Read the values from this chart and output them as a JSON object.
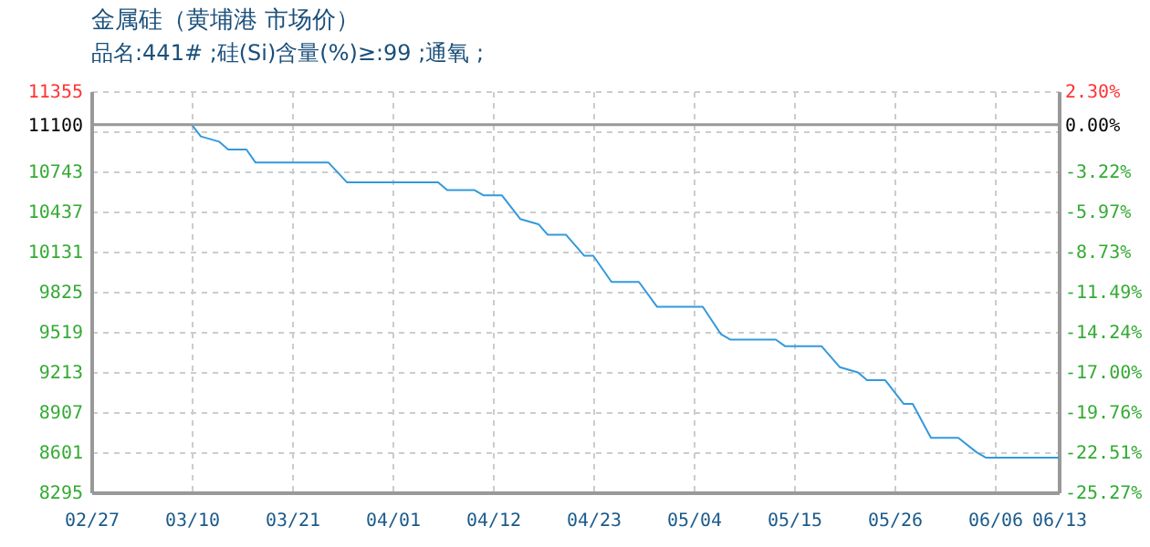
{
  "chart_data": {
    "type": "line",
    "title": "金属硅（黄埔港 市场价）",
    "subtitle": "品名:441# ;硅(Si)含量(%)≥:99 ;通氧 ;",
    "x": [
      "--02-27",
      "--03-10",
      "--03-11",
      "--03-13",
      "--03-14",
      "--03-16",
      "--03-17",
      "--03-25",
      "--03-27",
      "--04-06",
      "--04-07",
      "--04-10",
      "--04-11",
      "--04-13",
      "--04-15",
      "--04-17",
      "--04-18",
      "--04-20",
      "--04-22",
      "--04-23",
      "--04-25",
      "--04-28",
      "--04-30",
      "--05-05",
      "--05-07",
      "--05-08",
      "--05-13",
      "--05-14",
      "--05-18",
      "--05-20",
      "--05-22",
      "--05-23",
      "--05-25",
      "--05-27",
      "--05-28",
      "--05-30",
      "--06-02",
      "--06-04",
      "--06-05",
      "--06-13"
    ],
    "series": [
      {
        "color": "#3399dd",
        "values": [
          11100,
          11100,
          11010,
          10970,
          10910,
          10910,
          10810,
          10810,
          10660,
          10660,
          10600,
          10600,
          10560,
          10560,
          10380,
          10340,
          10260,
          10260,
          10100,
          10100,
          9900,
          9900,
          9710,
          9710,
          9500,
          9460,
          9460,
          9410,
          9410,
          9250,
          9210,
          9150,
          9150,
          8970,
          8970,
          8710,
          8710,
          8600,
          8560,
          8560
        ]
      }
    ],
    "xlim": [
      "--02-27",
      "--06-13"
    ],
    "xticks": [
      {
        "value": "--02-27",
        "label": "02/27"
      },
      {
        "value": "--03-10",
        "label": "03/10"
      },
      {
        "value": "--03-21",
        "label": "03/21"
      },
      {
        "value": "--04-01",
        "label": "04/01"
      },
      {
        "value": "--04-12",
        "label": "04/12"
      },
      {
        "value": "--04-23",
        "label": "04/23"
      },
      {
        "value": "--05-04",
        "label": "05/04"
      },
      {
        "value": "--05-15",
        "label": "05/15"
      },
      {
        "value": "--05-26",
        "label": "05/26"
      },
      {
        "value": "--06-06",
        "label": "06/06"
      },
      {
        "value": "--06-13",
        "label": "06/13"
      }
    ],
    "ylim": [
      8295,
      11355
    ],
    "yticks": [
      {
        "value": 11355,
        "label": "11355"
      },
      {
        "value": 11100,
        "label": "11100"
      },
      {
        "value": 11049,
        "label": null
      },
      {
        "value": 10743,
        "label": "10743"
      },
      {
        "value": 10437,
        "label": "10437"
      },
      {
        "value": 10131,
        "label": "10131"
      },
      {
        "value": 9825,
        "label": "9825"
      },
      {
        "value": 9519,
        "label": "9519"
      },
      {
        "value": 9213,
        "label": "9213"
      },
      {
        "value": 8907,
        "label": "8907"
      },
      {
        "value": 8601,
        "label": "8601"
      },
      {
        "value": 8295,
        "label": "8295"
      }
    ],
    "y2lim": [
      -25.27,
      2.3
    ],
    "y2ticks": [
      {
        "value": 2.3,
        "label": "2.30%"
      },
      {
        "value": 0,
        "label": "0.00%"
      },
      {
        "value": -3.22,
        "label": "-3.22%"
      },
      {
        "value": -5.97,
        "label": "-5.97%"
      },
      {
        "value": -8.73,
        "label": "-8.73%"
      },
      {
        "value": -11.49,
        "label": "-11.49%"
      },
      {
        "value": -14.24,
        "label": "-14.24%"
      },
      {
        "value": -17.0,
        "label": "-17.00%"
      },
      {
        "value": -19.76,
        "label": "-19.76%"
      },
      {
        "value": -22.51,
        "label": "-22.51%"
      },
      {
        "value": -25.27,
        "label": "-25.27%"
      }
    ],
    "ref_lines": [
      {
        "axis": "y2",
        "value": 0,
        "color": "#999999"
      }
    ],
    "grid": true
  }
}
